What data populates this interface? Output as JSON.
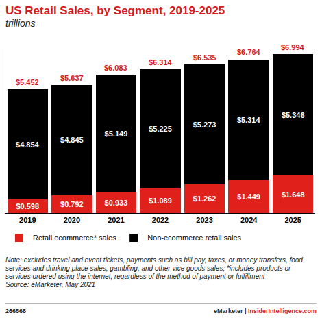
{
  "chart_data": {
    "type": "bar",
    "title": "US Retail Sales, by Segment, 2019-2025",
    "subtitle": "trillions",
    "categories": [
      "2019",
      "2020",
      "2021",
      "2022",
      "2023",
      "2024",
      "2025"
    ],
    "series": [
      {
        "name": "Retail ecommerce* sales",
        "color": "#e0201b",
        "values": [
          0.598,
          0.792,
          0.933,
          1.089,
          1.262,
          1.449,
          1.648
        ],
        "value_labels": [
          "$0.598",
          "$0.792",
          "$0.933",
          "$1.089",
          "$1.262",
          "$1.449",
          "$1.648"
        ]
      },
      {
        "name": "Non-ecommerce retail sales",
        "color": "#000000",
        "values": [
          4.854,
          4.845,
          5.149,
          5.225,
          5.273,
          5.314,
          5.346
        ],
        "value_labels": [
          "$4.854",
          "$4.845",
          "$5.149",
          "$5.225",
          "$5.273",
          "$5.314",
          "$5.346"
        ]
      }
    ],
    "totals": [
      5.452,
      5.637,
      6.083,
      6.314,
      6.535,
      6.764,
      6.994
    ],
    "total_labels": [
      "$5.452",
      "$5.637",
      "$6.083",
      "$6.314",
      "$6.535",
      "$6.764",
      "$6.994"
    ],
    "ylim": [
      0,
      7.2
    ],
    "yticks": [],
    "stacked": true,
    "data_labels": true,
    "grid": false,
    "legend": "bottom",
    "tick_labels": "x",
    "note": "Note: excludes travel and event tickets, payments such as bill pay, taxes, or money transfers, food services and drinking place sales, gambling, and other vice goods sales; *includes products or services ordered using the internet, regardless of the method of payment or fulfillment",
    "source": "Source: eMarketer, May 2021",
    "footer": {
      "id": "266568",
      "brand": "eMarketer",
      "separator": "|",
      "site": "InsiderIntelligence.com"
    }
  }
}
